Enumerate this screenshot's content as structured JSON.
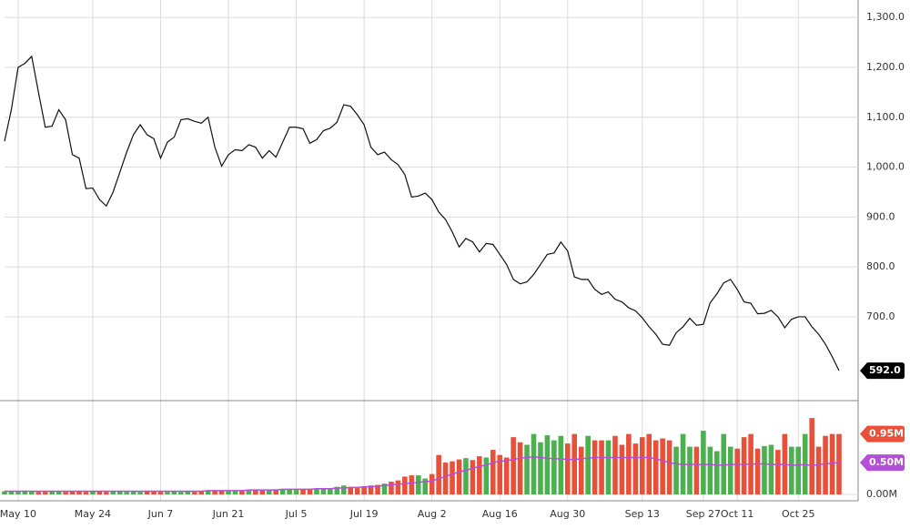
{
  "chart_data": [
    {
      "type": "line",
      "categories": [
        null,
        null,
        "May 10",
        null,
        null,
        null,
        null,
        null,
        null,
        null,
        null,
        null,
        null,
        "May 24",
        null,
        null,
        null,
        null,
        null,
        null,
        null,
        null,
        null,
        "Jun 7",
        null,
        null,
        null,
        null,
        null,
        null,
        null,
        null,
        null,
        "Jun 21",
        null,
        null,
        null,
        null,
        null,
        null,
        null,
        null,
        null,
        "Jul 5",
        null,
        null,
        null,
        null,
        null,
        null,
        null,
        null,
        null,
        "Jul 19",
        null,
        null,
        null,
        null,
        null,
        null,
        null,
        null,
        null,
        "Aug 2",
        null,
        null,
        null,
        null,
        null,
        null,
        null,
        null,
        null,
        "Aug 16",
        null,
        null,
        null,
        null,
        null,
        null,
        null,
        null,
        null,
        "Aug 30",
        null,
        null,
        null,
        null,
        null,
        null,
        null,
        null,
        null,
        null,
        "Sep 13",
        null,
        null,
        null,
        null,
        null,
        null,
        null,
        null,
        "Sep 27",
        null,
        null,
        null,
        null,
        "Oct 11",
        null,
        null,
        null,
        null,
        null,
        null,
        null,
        null,
        "Oct 25",
        null,
        null,
        null,
        null,
        null,
        null
      ],
      "series": [
        {
          "color": "#111111",
          "values": [
            1052,
            1115,
            1200,
            1208,
            1222,
            1150,
            1080,
            1082,
            1115,
            1095,
            1025,
            1018,
            957,
            958,
            935,
            922,
            950,
            990,
            1030,
            1065,
            1085,
            1065,
            1057,
            1018,
            1050,
            1060,
            1095,
            1097,
            1092,
            1088,
            1100,
            1040,
            1002,
            1025,
            1035,
            1033,
            1045,
            1040,
            1018,
            1033,
            1020,
            1050,
            1080,
            1080,
            1077,
            1048,
            1055,
            1073,
            1078,
            1090,
            1125,
            1122,
            1105,
            1085,
            1040,
            1025,
            1030,
            1015,
            1005,
            985,
            940,
            942,
            948,
            935,
            910,
            895,
            870,
            840,
            857,
            850,
            830,
            847,
            845,
            825,
            805,
            775,
            766,
            770,
            785,
            805,
            825,
            828,
            850,
            832,
            780,
            775,
            775,
            755,
            745,
            750,
            735,
            730,
            718,
            712,
            698,
            680,
            665,
            645,
            643,
            668,
            680,
            697,
            683,
            685,
            728,
            746,
            768,
            775,
            755,
            730,
            727,
            706,
            707,
            713,
            700,
            678,
            695,
            700,
            700,
            680,
            665,
            645,
            620,
            592
          ],
          "tag": "592.0"
        }
      ],
      "ylim": [
        532,
        1335
      ],
      "yticks": [
        {
          "value": 700,
          "label": "700.0"
        },
        {
          "value": 800,
          "label": "800.0"
        },
        {
          "value": 900,
          "label": "900.0"
        },
        {
          "value": 1000,
          "label": "1,000.0"
        },
        {
          "value": 1100,
          "label": "1,100.0"
        },
        {
          "value": 1200,
          "label": "1,200.0"
        },
        {
          "value": 1300,
          "label": "1,300.0"
        }
      ],
      "grid": true
    },
    {
      "type": "bar",
      "series": [
        {
          "color_up": "#4caf50",
          "color_down": "#e8503a",
          "tag": "0.95M",
          "values": [
            0.05,
            0.05,
            0.04,
            0.06,
            0.05,
            0.04,
            0.04,
            0.05,
            0.05,
            0.04,
            0.05,
            0.05,
            0.04,
            0.05,
            0.05,
            0.04,
            0.05,
            0.05,
            0.04,
            0.05,
            0.04,
            0.05,
            0.05,
            0.04,
            0.04,
            0.05,
            0.04,
            0.05,
            0.04,
            0.05,
            0.05,
            0.06,
            0.05,
            0.05,
            0.06,
            0.05,
            0.06,
            0.07,
            0.06,
            0.07,
            0.07,
            0.08,
            0.08,
            0.07,
            0.08,
            0.09,
            0.08,
            0.1,
            0.09,
            0.12,
            0.14,
            0.12,
            0.1,
            0.12,
            0.14,
            0.15,
            0.17,
            0.2,
            0.22,
            0.28,
            0.3,
            0.3,
            0.25,
            0.32,
            0.62,
            0.5,
            0.52,
            0.55,
            0.57,
            0.54,
            0.6,
            0.58,
            0.7,
            0.62,
            0.58,
            0.9,
            0.82,
            0.78,
            0.95,
            0.82,
            0.93,
            0.85,
            0.92,
            0.8,
            0.95,
            0.75,
            0.92,
            0.85,
            0.85,
            0.85,
            0.92,
            0.78,
            0.95,
            0.8,
            0.9,
            0.95,
            0.85,
            0.88,
            0.85,
            0.75,
            0.95,
            0.75,
            0.75,
            1.0,
            0.75,
            0.68,
            0.95,
            0.75,
            0.72,
            0.9,
            0.95,
            0.72,
            0.76,
            0.78,
            0.7,
            0.95,
            0.75,
            0.75,
            0.95,
            1.2,
            0.75,
            0.92,
            0.95,
            0.95
          ]
        },
        {
          "color": "#b44fd8",
          "tag": "0.50M",
          "values": [
            0.05,
            0.05,
            0.05,
            0.05,
            0.05,
            0.05,
            0.05,
            0.05,
            0.05,
            0.05,
            0.05,
            0.05,
            0.05,
            0.05,
            0.05,
            0.05,
            0.05,
            0.05,
            0.05,
            0.05,
            0.05,
            0.05,
            0.05,
            0.05,
            0.05,
            0.05,
            0.05,
            0.05,
            0.05,
            0.05,
            0.06,
            0.06,
            0.06,
            0.06,
            0.06,
            0.06,
            0.07,
            0.07,
            0.07,
            0.07,
            0.07,
            0.08,
            0.08,
            0.08,
            0.08,
            0.08,
            0.09,
            0.09,
            0.09,
            0.1,
            0.1,
            0.11,
            0.11,
            0.12,
            0.12,
            0.13,
            0.14,
            0.15,
            0.16,
            0.17,
            0.18,
            0.19,
            0.2,
            0.21,
            0.25,
            0.28,
            0.32,
            0.35,
            0.38,
            0.41,
            0.44,
            0.46,
            0.5,
            0.52,
            0.53,
            0.55,
            0.57,
            0.58,
            0.59,
            0.58,
            0.57,
            0.56,
            0.56,
            0.55,
            0.55,
            0.56,
            0.57,
            0.58,
            0.58,
            0.58,
            0.58,
            0.58,
            0.58,
            0.58,
            0.58,
            0.58,
            0.56,
            0.53,
            0.5,
            0.48,
            0.47,
            0.47,
            0.47,
            0.47,
            0.47,
            0.46,
            0.46,
            0.47,
            0.47,
            0.47,
            0.48,
            0.48,
            0.48,
            0.47,
            0.47,
            0.47,
            0.46,
            0.46,
            0.47,
            0.45,
            0.47,
            0.48,
            0.49,
            0.5
          ]
        }
      ],
      "ylim": [
        -0.1,
        1.46
      ],
      "yticks": [
        {
          "value": 0,
          "label": "0.00M"
        }
      ]
    }
  ]
}
